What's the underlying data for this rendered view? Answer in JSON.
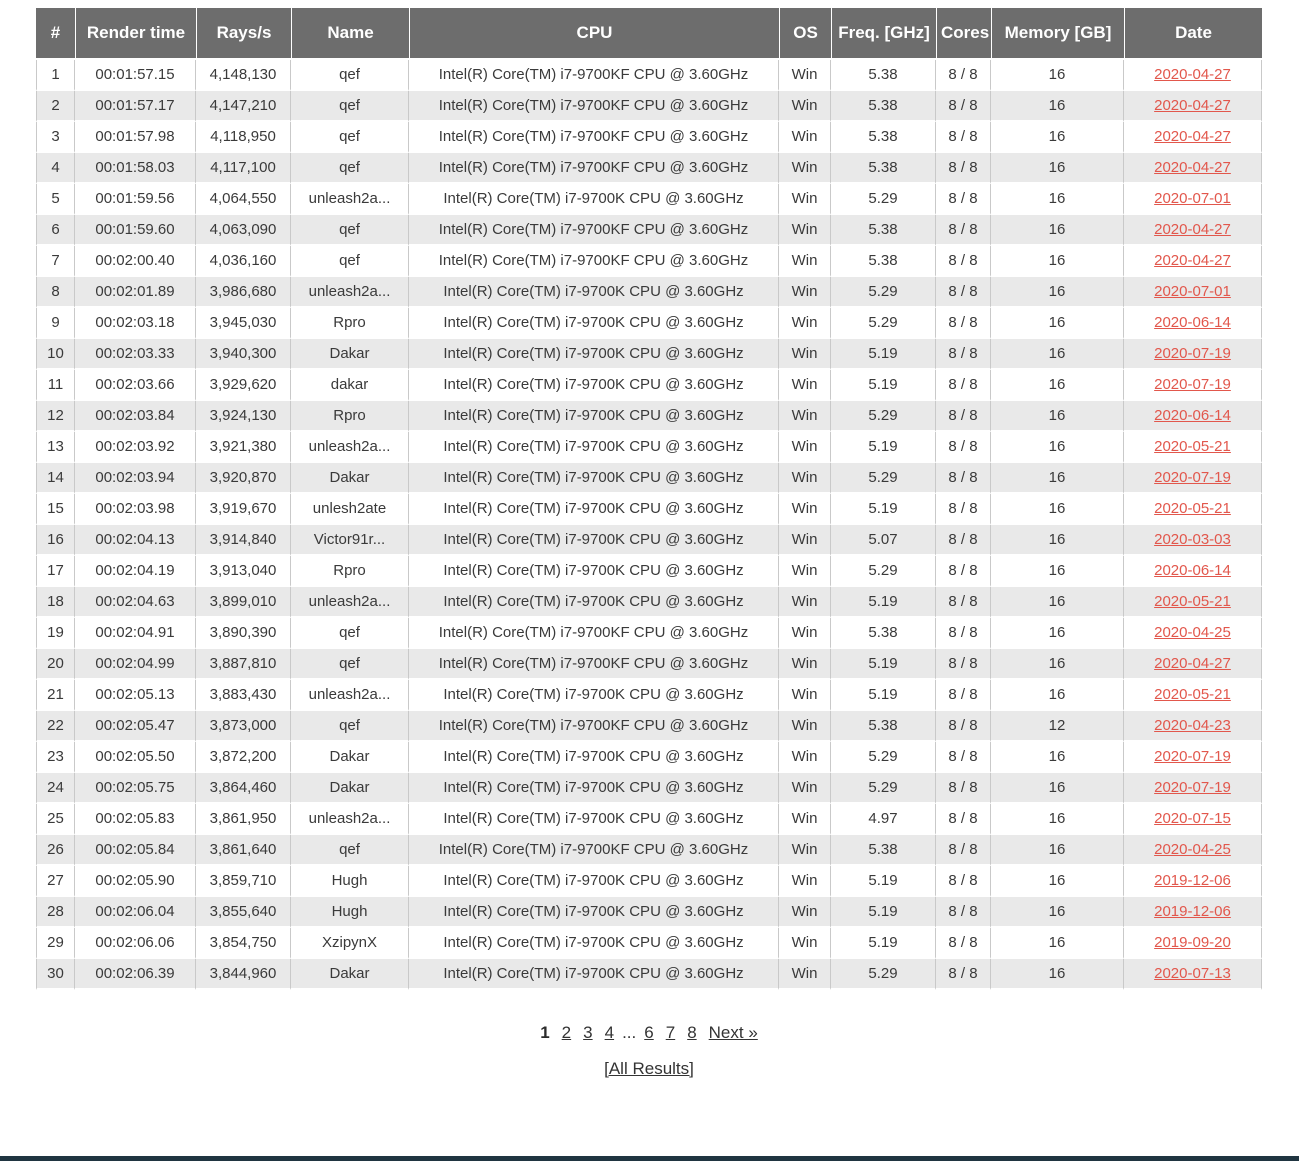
{
  "table": {
    "headers": [
      "#",
      "Render time",
      "Rays/s",
      "Name",
      "CPU",
      "OS",
      "Freq. [GHz]",
      "Cores",
      "Memory [GB]",
      "Date"
    ],
    "rows": [
      {
        "rank": "1",
        "render_time": "00:01:57.15",
        "rays": "4,148,130",
        "name": "qef",
        "cpu": "Intel(R) Core(TM) i7-9700KF CPU @ 3.60GHz",
        "os": "Win",
        "freq": "5.38",
        "cores": "8 / 8",
        "memory": "16",
        "date": "2020-04-27"
      },
      {
        "rank": "2",
        "render_time": "00:01:57.17",
        "rays": "4,147,210",
        "name": "qef",
        "cpu": "Intel(R) Core(TM) i7-9700KF CPU @ 3.60GHz",
        "os": "Win",
        "freq": "5.38",
        "cores": "8 / 8",
        "memory": "16",
        "date": "2020-04-27"
      },
      {
        "rank": "3",
        "render_time": "00:01:57.98",
        "rays": "4,118,950",
        "name": "qef",
        "cpu": "Intel(R) Core(TM) i7-9700KF CPU @ 3.60GHz",
        "os": "Win",
        "freq": "5.38",
        "cores": "8 / 8",
        "memory": "16",
        "date": "2020-04-27"
      },
      {
        "rank": "4",
        "render_time": "00:01:58.03",
        "rays": "4,117,100",
        "name": "qef",
        "cpu": "Intel(R) Core(TM) i7-9700KF CPU @ 3.60GHz",
        "os": "Win",
        "freq": "5.38",
        "cores": "8 / 8",
        "memory": "16",
        "date": "2020-04-27"
      },
      {
        "rank": "5",
        "render_time": "00:01:59.56",
        "rays": "4,064,550",
        "name": "unleash2a...",
        "cpu": "Intel(R) Core(TM) i7-9700K CPU @ 3.60GHz",
        "os": "Win",
        "freq": "5.29",
        "cores": "8 / 8",
        "memory": "16",
        "date": "2020-07-01"
      },
      {
        "rank": "6",
        "render_time": "00:01:59.60",
        "rays": "4,063,090",
        "name": "qef",
        "cpu": "Intel(R) Core(TM) i7-9700KF CPU @ 3.60GHz",
        "os": "Win",
        "freq": "5.38",
        "cores": "8 / 8",
        "memory": "16",
        "date": "2020-04-27"
      },
      {
        "rank": "7",
        "render_time": "00:02:00.40",
        "rays": "4,036,160",
        "name": "qef",
        "cpu": "Intel(R) Core(TM) i7-9700KF CPU @ 3.60GHz",
        "os": "Win",
        "freq": "5.38",
        "cores": "8 / 8",
        "memory": "16",
        "date": "2020-04-27"
      },
      {
        "rank": "8",
        "render_time": "00:02:01.89",
        "rays": "3,986,680",
        "name": "unleash2a...",
        "cpu": "Intel(R) Core(TM) i7-9700K CPU @ 3.60GHz",
        "os": "Win",
        "freq": "5.29",
        "cores": "8 / 8",
        "memory": "16",
        "date": "2020-07-01"
      },
      {
        "rank": "9",
        "render_time": "00:02:03.18",
        "rays": "3,945,030",
        "name": "Rpro",
        "cpu": "Intel(R) Core(TM) i7-9700K CPU @ 3.60GHz",
        "os": "Win",
        "freq": "5.29",
        "cores": "8 / 8",
        "memory": "16",
        "date": "2020-06-14"
      },
      {
        "rank": "10",
        "render_time": "00:02:03.33",
        "rays": "3,940,300",
        "name": "Dakar",
        "cpu": "Intel(R) Core(TM) i7-9700K CPU @ 3.60GHz",
        "os": "Win",
        "freq": "5.19",
        "cores": "8 / 8",
        "memory": "16",
        "date": "2020-07-19"
      },
      {
        "rank": "11",
        "render_time": "00:02:03.66",
        "rays": "3,929,620",
        "name": "dakar",
        "cpu": "Intel(R) Core(TM) i7-9700K CPU @ 3.60GHz",
        "os": "Win",
        "freq": "5.19",
        "cores": "8 / 8",
        "memory": "16",
        "date": "2020-07-19"
      },
      {
        "rank": "12",
        "render_time": "00:02:03.84",
        "rays": "3,924,130",
        "name": "Rpro",
        "cpu": "Intel(R) Core(TM) i7-9700K CPU @ 3.60GHz",
        "os": "Win",
        "freq": "5.29",
        "cores": "8 / 8",
        "memory": "16",
        "date": "2020-06-14"
      },
      {
        "rank": "13",
        "render_time": "00:02:03.92",
        "rays": "3,921,380",
        "name": "unleash2a...",
        "cpu": "Intel(R) Core(TM) i7-9700K CPU @ 3.60GHz",
        "os": "Win",
        "freq": "5.19",
        "cores": "8 / 8",
        "memory": "16",
        "date": "2020-05-21"
      },
      {
        "rank": "14",
        "render_time": "00:02:03.94",
        "rays": "3,920,870",
        "name": "Dakar",
        "cpu": "Intel(R) Core(TM) i7-9700K CPU @ 3.60GHz",
        "os": "Win",
        "freq": "5.29",
        "cores": "8 / 8",
        "memory": "16",
        "date": "2020-07-19"
      },
      {
        "rank": "15",
        "render_time": "00:02:03.98",
        "rays": "3,919,670",
        "name": "unlesh2ate",
        "cpu": "Intel(R) Core(TM) i7-9700K CPU @ 3.60GHz",
        "os": "Win",
        "freq": "5.19",
        "cores": "8 / 8",
        "memory": "16",
        "date": "2020-05-21"
      },
      {
        "rank": "16",
        "render_time": "00:02:04.13",
        "rays": "3,914,840",
        "name": "Victor91r...",
        "cpu": "Intel(R) Core(TM) i7-9700K CPU @ 3.60GHz",
        "os": "Win",
        "freq": "5.07",
        "cores": "8 / 8",
        "memory": "16",
        "date": "2020-03-03"
      },
      {
        "rank": "17",
        "render_time": "00:02:04.19",
        "rays": "3,913,040",
        "name": "Rpro",
        "cpu": "Intel(R) Core(TM) i7-9700K CPU @ 3.60GHz",
        "os": "Win",
        "freq": "5.29",
        "cores": "8 / 8",
        "memory": "16",
        "date": "2020-06-14"
      },
      {
        "rank": "18",
        "render_time": "00:02:04.63",
        "rays": "3,899,010",
        "name": "unleash2a...",
        "cpu": "Intel(R) Core(TM) i7-9700K CPU @ 3.60GHz",
        "os": "Win",
        "freq": "5.19",
        "cores": "8 / 8",
        "memory": "16",
        "date": "2020-05-21"
      },
      {
        "rank": "19",
        "render_time": "00:02:04.91",
        "rays": "3,890,390",
        "name": "qef",
        "cpu": "Intel(R) Core(TM) i7-9700KF CPU @ 3.60GHz",
        "os": "Win",
        "freq": "5.38",
        "cores": "8 / 8",
        "memory": "16",
        "date": "2020-04-25"
      },
      {
        "rank": "20",
        "render_time": "00:02:04.99",
        "rays": "3,887,810",
        "name": "qef",
        "cpu": "Intel(R) Core(TM) i7-9700KF CPU @ 3.60GHz",
        "os": "Win",
        "freq": "5.19",
        "cores": "8 / 8",
        "memory": "16",
        "date": "2020-04-27"
      },
      {
        "rank": "21",
        "render_time": "00:02:05.13",
        "rays": "3,883,430",
        "name": "unleash2a...",
        "cpu": "Intel(R) Core(TM) i7-9700K CPU @ 3.60GHz",
        "os": "Win",
        "freq": "5.19",
        "cores": "8 / 8",
        "memory": "16",
        "date": "2020-05-21"
      },
      {
        "rank": "22",
        "render_time": "00:02:05.47",
        "rays": "3,873,000",
        "name": "qef",
        "cpu": "Intel(R) Core(TM) i7-9700KF CPU @ 3.60GHz",
        "os": "Win",
        "freq": "5.38",
        "cores": "8 / 8",
        "memory": "12",
        "date": "2020-04-23"
      },
      {
        "rank": "23",
        "render_time": "00:02:05.50",
        "rays": "3,872,200",
        "name": "Dakar",
        "cpu": "Intel(R) Core(TM) i7-9700K CPU @ 3.60GHz",
        "os": "Win",
        "freq": "5.29",
        "cores": "8 / 8",
        "memory": "16",
        "date": "2020-07-19"
      },
      {
        "rank": "24",
        "render_time": "00:02:05.75",
        "rays": "3,864,460",
        "name": "Dakar",
        "cpu": "Intel(R) Core(TM) i7-9700K CPU @ 3.60GHz",
        "os": "Win",
        "freq": "5.29",
        "cores": "8 / 8",
        "memory": "16",
        "date": "2020-07-19"
      },
      {
        "rank": "25",
        "render_time": "00:02:05.83",
        "rays": "3,861,950",
        "name": "unleash2a...",
        "cpu": "Intel(R) Core(TM) i7-9700K CPU @ 3.60GHz",
        "os": "Win",
        "freq": "4.97",
        "cores": "8 / 8",
        "memory": "16",
        "date": "2020-07-15"
      },
      {
        "rank": "26",
        "render_time": "00:02:05.84",
        "rays": "3,861,640",
        "name": "qef",
        "cpu": "Intel(R) Core(TM) i7-9700KF CPU @ 3.60GHz",
        "os": "Win",
        "freq": "5.38",
        "cores": "8 / 8",
        "memory": "16",
        "date": "2020-04-25"
      },
      {
        "rank": "27",
        "render_time": "00:02:05.90",
        "rays": "3,859,710",
        "name": "Hugh",
        "cpu": "Intel(R) Core(TM) i7-9700K CPU @ 3.60GHz",
        "os": "Win",
        "freq": "5.19",
        "cores": "8 / 8",
        "memory": "16",
        "date": "2019-12-06"
      },
      {
        "rank": "28",
        "render_time": "00:02:06.04",
        "rays": "3,855,640",
        "name": "Hugh",
        "cpu": "Intel(R) Core(TM) i7-9700K CPU @ 3.60GHz",
        "os": "Win",
        "freq": "5.19",
        "cores": "8 / 8",
        "memory": "16",
        "date": "2019-12-06"
      },
      {
        "rank": "29",
        "render_time": "00:02:06.06",
        "rays": "3,854,750",
        "name": "XzipynX",
        "cpu": "Intel(R) Core(TM) i7-9700K CPU @ 3.60GHz",
        "os": "Win",
        "freq": "5.19",
        "cores": "8 / 8",
        "memory": "16",
        "date": "2019-09-20"
      },
      {
        "rank": "30",
        "render_time": "00:02:06.39",
        "rays": "3,844,960",
        "name": "Dakar",
        "cpu": "Intel(R) Core(TM) i7-9700K CPU @ 3.60GHz",
        "os": "Win",
        "freq": "5.29",
        "cores": "8 / 8",
        "memory": "16",
        "date": "2020-07-13"
      }
    ]
  },
  "pagination": {
    "current": "1",
    "links_before": [
      "2",
      "3",
      "4"
    ],
    "gap": "...",
    "links_after": [
      "6",
      "7",
      "8"
    ],
    "next_label": "Next »"
  },
  "all_results": {
    "label": "[All Results]"
  },
  "colors": {
    "header_bg": "#6d6d6d",
    "alt_row_bg": "#e9e9e9",
    "date_link": "#e2574c",
    "pagination_link": "#333333",
    "footer_bar": "#203541"
  }
}
